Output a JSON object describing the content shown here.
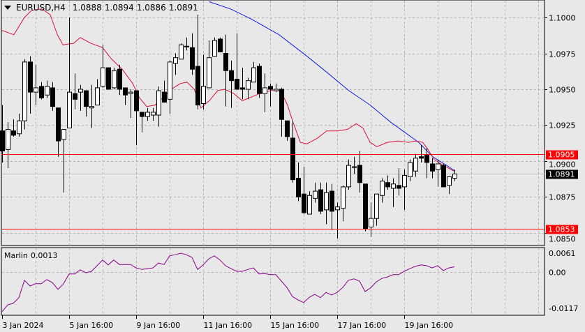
{
  "header": {
    "symbol": "EURUSD,H4",
    "open": "1.0888",
    "high": "1.0894",
    "low": "1.0886",
    "close": "1.0891"
  },
  "indicator": {
    "name": "Marlin",
    "value": "0.0013"
  },
  "colors": {
    "background": "#e8e8e8",
    "grid": "#b4b4b4",
    "level_line": "#ff0000",
    "fast_ma": "#e0103a",
    "slow_ma": "#1020e0",
    "oscillator": "#8b008b",
    "bull_body": "#ffffff",
    "bear_body": "#000000"
  },
  "chart_data": {
    "type": "candlestick",
    "title": "EURUSD,H4",
    "y_ticks": [
      "1.1000",
      "1.0975",
      "1.0950",
      "1.0925",
      "1.0900",
      "1.0875",
      "1.0850"
    ],
    "x_labels": [
      "3 Jan 2024",
      "5 Jan 16:00",
      "9 Jan 16:00",
      "11 Jan 16:00",
      "15 Jan 16:00",
      "17 Jan 16:00",
      "19 Jan 16:00"
    ],
    "levels": [
      {
        "price": "1.0905",
        "color": "#ff0000"
      },
      {
        "price": "1.0853",
        "color": "#ff0000"
      }
    ],
    "current_price": "1.0891",
    "ohlc": [
      [
        1.0921,
        1.0939,
        1.0899,
        1.0907
      ],
      [
        1.0908,
        1.0927,
        1.0895,
        1.0922
      ],
      [
        1.0921,
        1.0929,
        1.0917,
        1.0918
      ],
      [
        1.0919,
        1.0933,
        1.0917,
        1.0928
      ],
      [
        1.0928,
        1.0971,
        1.0922,
        1.0969
      ],
      [
        1.0969,
        1.0973,
        1.0933,
        1.0948
      ],
      [
        1.0948,
        1.0967,
        1.0939,
        1.0951
      ],
      [
        1.0952,
        1.0955,
        1.0943,
        1.0944
      ],
      [
        1.0946,
        1.0956,
        1.0944,
        1.0952
      ],
      [
        1.0951,
        1.0955,
        1.0935,
        1.0938
      ],
      [
        1.0937,
        1.0937,
        1.0903,
        1.0914
      ],
      [
        1.0915,
        1.0922,
        1.0878,
        1.0922
      ],
      [
        1.0923,
        1.1,
        1.0923,
        1.0948
      ],
      [
        1.0947,
        1.0961,
        1.0936,
        1.0943
      ],
      [
        1.0948,
        1.0953,
        1.0935,
        1.095
      ],
      [
        1.0949,
        1.0949,
        1.0931,
        1.0938
      ],
      [
        1.0937,
        1.0953,
        1.0923,
        1.0938
      ],
      [
        1.0939,
        1.0957,
        1.0939,
        1.0951
      ],
      [
        1.0952,
        1.0981,
        1.0951,
        1.0965
      ],
      [
        1.0965,
        1.0965,
        1.095,
        1.095
      ],
      [
        1.0951,
        1.0965,
        1.095,
        1.0963
      ],
      [
        1.0964,
        1.0967,
        1.0946,
        1.095
      ],
      [
        1.0951,
        1.0951,
        1.0939,
        1.0946
      ],
      [
        1.0947,
        1.095,
        1.093,
        1.0948
      ],
      [
        1.0949,
        1.0949,
        1.0911,
        1.0935
      ],
      [
        1.0934,
        1.0934,
        1.092,
        1.0931
      ],
      [
        1.0931,
        1.0937,
        1.0928,
        1.0934
      ],
      [
        1.0932,
        1.0937,
        1.0928,
        1.0934
      ],
      [
        1.0932,
        1.0952,
        1.0924,
        1.0949
      ],
      [
        1.0948,
        1.0956,
        1.0941,
        1.0941
      ],
      [
        1.0943,
        1.097,
        1.0933,
        1.0969
      ],
      [
        1.0968,
        1.0975,
        1.096,
        1.0972
      ],
      [
        1.0971,
        1.0982,
        1.0971,
        1.0981
      ],
      [
        1.098,
        1.0986,
        1.0977,
        1.098
      ],
      [
        1.0979,
        1.0989,
        1.096,
        1.0964
      ],
      [
        1.0966,
        1.1002,
        1.0936,
        1.0939
      ],
      [
        1.094,
        1.0974,
        1.0936,
        1.0952
      ],
      [
        1.0951,
        1.0984,
        1.0951,
        1.0972
      ],
      [
        1.0973,
        1.0986,
        1.0973,
        1.0984
      ],
      [
        1.0985,
        1.0986,
        1.0976,
        1.0976
      ],
      [
        1.0975,
        1.0988,
        1.0938,
        1.0963
      ],
      [
        1.0963,
        1.097,
        1.0937,
        1.0956
      ],
      [
        1.0957,
        1.0989,
        1.095,
        1.095
      ],
      [
        1.0951,
        1.0965,
        1.0943,
        1.095
      ],
      [
        1.095,
        1.0958,
        1.0943,
        1.0956
      ],
      [
        1.0955,
        1.0969,
        1.0955,
        1.0965
      ],
      [
        1.0966,
        1.0968,
        1.0944,
        1.0947
      ],
      [
        1.0947,
        1.0961,
        1.0934,
        1.0951
      ],
      [
        1.0952,
        1.0954,
        1.0938,
        1.095
      ],
      [
        1.0949,
        1.0954,
        1.0948,
        1.095
      ],
      [
        1.095,
        1.0951,
        1.0917,
        1.0929
      ],
      [
        1.0928,
        1.0928,
        1.0914,
        1.0917
      ],
      [
        1.0916,
        1.0928,
        1.0885,
        1.0887
      ],
      [
        1.0888,
        1.0899,
        1.0872,
        1.0875
      ],
      [
        1.0877,
        1.0896,
        1.0863,
        1.0864
      ],
      [
        1.0863,
        1.0879,
        1.0863,
        1.0876
      ],
      [
        1.0874,
        1.0885,
        1.0871,
        1.0879
      ],
      [
        1.088,
        1.0885,
        1.0863,
        1.0865
      ],
      [
        1.0866,
        1.0885,
        1.0856,
        1.0878
      ],
      [
        1.0879,
        1.0884,
        1.0852,
        1.0865
      ],
      [
        1.0866,
        1.0871,
        1.0846,
        1.0868
      ],
      [
        1.0867,
        1.0883,
        1.0858,
        1.0882
      ],
      [
        1.0882,
        1.0901,
        1.088,
        1.0897
      ],
      [
        1.0896,
        1.0903,
        1.0891,
        1.0896
      ],
      [
        1.0897,
        1.0907,
        1.0878,
        1.0885
      ],
      [
        1.0884,
        1.0884,
        1.0851,
        1.0853
      ],
      [
        1.0854,
        1.0871,
        1.0847,
        1.086
      ],
      [
        1.086,
        1.0877,
        1.0855,
        1.0877
      ],
      [
        1.0876,
        1.0888,
        1.0871,
        1.0886
      ],
      [
        1.0885,
        1.089,
        1.088,
        1.0882
      ],
      [
        1.0881,
        1.0888,
        1.0868,
        1.0884
      ],
      [
        1.0883,
        1.0895,
        1.0876,
        1.0881
      ],
      [
        1.0882,
        1.0894,
        1.0866,
        1.089
      ],
      [
        1.0889,
        1.0901,
        1.0886,
        1.0899
      ],
      [
        1.0893,
        1.0905,
        1.0889,
        1.0902
      ],
      [
        1.0903,
        1.0911,
        1.0899,
        1.0902
      ],
      [
        1.0904,
        1.0909,
        1.0888,
        1.0899
      ],
      [
        1.0898,
        1.0902,
        1.0888,
        1.0893
      ],
      [
        1.0894,
        1.0901,
        1.0882,
        1.0898
      ],
      [
        1.0897,
        1.0898,
        1.0882,
        1.0882
      ],
      [
        1.0883,
        1.0889,
        1.0877,
        1.0889
      ],
      [
        1.0888,
        1.0894,
        1.0886,
        1.0891
      ]
    ],
    "fast_ma": [
      [
        0,
        1.0991
      ],
      [
        2.1,
        1.0988
      ],
      [
        4,
        1.1
      ],
      [
        5.3,
        1.1005
      ],
      [
        7.1,
        1.1006
      ],
      [
        8.6,
        1.1002
      ],
      [
        9.9,
        1.0988
      ],
      [
        10.9,
        1.0981
      ],
      [
        12.8,
        1.0982
      ],
      [
        14,
        1.0986
      ],
      [
        15.9,
        1.0982
      ],
      [
        18,
        1.0979
      ],
      [
        19.6,
        1.0971
      ],
      [
        21.5,
        1.0964
      ],
      [
        23.4,
        1.0954
      ],
      [
        24.6,
        1.0944
      ],
      [
        25.9,
        1.0938
      ],
      [
        27.4,
        1.0939
      ],
      [
        29,
        1.0945
      ],
      [
        30.3,
        1.095
      ],
      [
        31.9,
        1.0954
      ],
      [
        33.1,
        1.0955
      ],
      [
        34.4,
        1.095
      ],
      [
        35.6,
        1.0937
      ],
      [
        37.1,
        1.0942
      ],
      [
        38.6,
        1.0949
      ],
      [
        39.9,
        1.095
      ],
      [
        41.5,
        1.0947
      ],
      [
        43,
        1.0942
      ],
      [
        44.3,
        1.0944
      ],
      [
        46.1,
        1.0947
      ],
      [
        49,
        1.095
      ],
      [
        50,
        1.0948
      ],
      [
        51.1,
        1.0939
      ],
      [
        52.1,
        1.0927
      ],
      [
        53.4,
        1.0913
      ],
      [
        54.6,
        1.0912
      ],
      [
        56.5,
        1.0916
      ],
      [
        58.1,
        1.0921
      ],
      [
        59.9,
        1.0921
      ],
      [
        61.8,
        1.0922
      ],
      [
        63.4,
        1.0926
      ],
      [
        64.6,
        1.0923
      ],
      [
        65.9,
        1.0913
      ],
      [
        67.1,
        1.091
      ],
      [
        69,
        1.0913
      ],
      [
        70.9,
        1.0914
      ],
      [
        72.8,
        1.0913
      ],
      [
        74,
        1.0914
      ],
      [
        75.3,
        1.0913
      ],
      [
        76.1,
        1.0909
      ],
      [
        77.4,
        1.0901
      ],
      [
        79,
        1.0897
      ],
      [
        80.9,
        1.0893
      ]
    ],
    "slow_ma": [
      [
        37.1,
        1.1011
      ],
      [
        40.9,
        1.1006
      ],
      [
        44.6,
        1.0999
      ],
      [
        49.6,
        1.0988
      ],
      [
        54.6,
        1.0973
      ],
      [
        58.4,
        1.0961
      ],
      [
        62.1,
        1.0949
      ],
      [
        65.9,
        1.0939
      ],
      [
        69.6,
        1.0927
      ],
      [
        72.1,
        1.092
      ],
      [
        74.6,
        1.0913
      ],
      [
        77.1,
        1.0903
      ],
      [
        79.6,
        1.0897
      ],
      [
        81.1,
        1.0893
      ]
    ],
    "oscillator": {
      "name": "Marlin",
      "y_ticks": [
        "0.0061",
        "0.00",
        "-0.0117"
      ],
      "range": [
        -0.0117,
        0.0061
      ],
      "values": [
        -0.0106,
        -0.0088,
        -0.0084,
        -0.0069,
        -0.0023,
        -0.0038,
        -0.0032,
        -0.0032,
        -0.0021,
        -0.0029,
        -0.0047,
        -0.0032,
        -0.0006,
        -0.0006,
        0.0005,
        -0.0003,
        0.0001,
        0.0016,
        0.0031,
        0.0018,
        0.0031,
        0.0019,
        0.0019,
        0.0019,
        0.001,
        0.0006,
        0.0008,
        0.001,
        0.0023,
        0.0019,
        0.0042,
        0.0045,
        0.0049,
        0.0045,
        0.0038,
        0.0006,
        0.0018,
        0.0034,
        0.0042,
        0.0031,
        0.0016,
        0.0008,
        0.0001,
        0.0001,
        0.0006,
        0.001,
        -0.0006,
        -0.0005,
        -0.0008,
        -0.0008,
        -0.0025,
        -0.0042,
        -0.0066,
        -0.0075,
        -0.0082,
        -0.0068,
        -0.006,
        -0.0069,
        -0.0055,
        -0.0062,
        -0.0055,
        -0.0042,
        -0.0023,
        -0.0019,
        -0.0025,
        -0.0053,
        -0.0043,
        -0.0027,
        -0.0018,
        -0.0014,
        -0.0008,
        -0.0008,
        0.0001,
        0.0008,
        0.0014,
        0.0018,
        0.0016,
        0.001,
        0.0016,
        0.0003,
        0.001,
        0.0013
      ]
    }
  }
}
